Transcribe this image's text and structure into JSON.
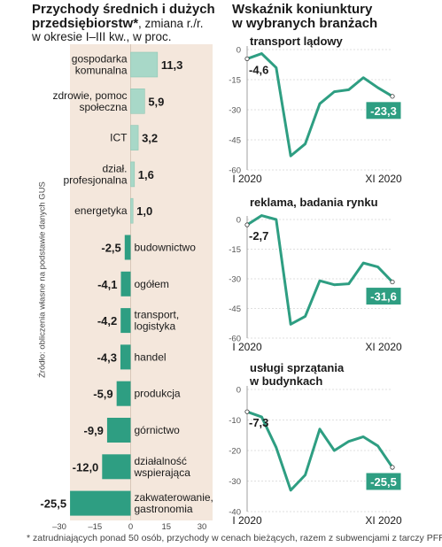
{
  "left_title": {
    "line1": "Przychody średnich i dużych",
    "line2_bold": "przedsiębiorstw*",
    "line2_rest": ", zmiana r./r.",
    "line3": "w okresie I–III kw., w proc."
  },
  "right_title": {
    "line1": "Wskaźnik koniunktury",
    "line2": "w wybranych branżach"
  },
  "source": "Źródło: obliczenia własne na podstawie danych GUS",
  "footnote": "* zatrudniających ponad 50 osób, przychody w cenach bieżących, razem z subwencjami z tarczy PFR",
  "colors": {
    "bar_fill": "#2e9e82",
    "bar_light": "#a8d8c8",
    "band": "#f4e7dc",
    "line": "#2e9e82",
    "label_box": "#2e9e82"
  },
  "chart_data": [
    {
      "type": "bar",
      "orientation": "horizontal",
      "categories": [
        "gospodarka komunalna",
        "zdrowie, pomoc społeczna",
        "ICT",
        "dział. profesjonalna",
        "energetyka",
        "budownictwo",
        "ogółem",
        "transport, logistyka",
        "handel",
        "produkcja",
        "górnictwo",
        "działalność wspierająca",
        "zakwaterowanie, gastronomia"
      ],
      "category_lines": [
        [
          "gospodarka",
          "komunalna"
        ],
        [
          "zdrowie, pomoc",
          "społeczna"
        ],
        [
          "ICT"
        ],
        [
          "dział.",
          "profesjonalna"
        ],
        [
          "energetyka"
        ],
        [
          "budownictwo"
        ],
        [
          "ogółem"
        ],
        [
          "transport,",
          "logistyka"
        ],
        [
          "handel"
        ],
        [
          "produkcja"
        ],
        [
          "górnictwo"
        ],
        [
          "działalność",
          "wspierająca"
        ],
        [
          "zakwaterowanie,",
          "gastronomia"
        ]
      ],
      "values": [
        11.3,
        5.9,
        3.2,
        1.6,
        1.0,
        -2.5,
        -4.1,
        -4.2,
        -4.3,
        -5.9,
        -9.9,
        -12.0,
        -25.5
      ],
      "value_labels": [
        "11,3",
        "5,9",
        "3,2",
        "1,6",
        "1,0",
        "-2,5",
        "-4,1",
        "-4,2",
        "-4,3",
        "-5,9",
        "-9,9",
        "-12,0",
        "-25,5"
      ],
      "xlim": [
        -30,
        30
      ],
      "xticks": [
        -30,
        -15,
        0,
        15,
        30
      ],
      "xtick_labels": [
        "–30",
        "–15",
        "0",
        "15",
        "30"
      ]
    },
    {
      "type": "line",
      "title": "transport lądowy",
      "x": [
        "I 2020",
        "II 2020",
        "III 2020",
        "IV 2020",
        "V 2020",
        "VI 2020",
        "VII 2020",
        "VIII 2020",
        "IX 2020",
        "X 2020",
        "XI 2020"
      ],
      "values": [
        -4.6,
        -2.0,
        -9.0,
        -53.0,
        -47.0,
        -27.0,
        -21.0,
        -20.0,
        -14.0,
        -19.0,
        -23.3
      ],
      "ylim": [
        -60,
        0
      ],
      "yticks": [
        0,
        -15,
        -30,
        -45,
        -60
      ],
      "ytick_labels": [
        "0",
        "-15",
        "-30",
        "-45",
        "-60"
      ],
      "x_labels": [
        "I 2020",
        "XI 2020"
      ],
      "first_label": "-4,6",
      "last_label": "-23,3"
    },
    {
      "type": "line",
      "title": "reklama, badania rynku",
      "x": [
        "I 2020",
        "II 2020",
        "III 2020",
        "IV 2020",
        "V 2020",
        "VI 2020",
        "VII 2020",
        "VIII 2020",
        "IX 2020",
        "X 2020",
        "XI 2020"
      ],
      "values": [
        -2.7,
        2.0,
        0.0,
        -53.0,
        -49.0,
        -31.0,
        -33.0,
        -32.5,
        -22.0,
        -24.0,
        -31.6
      ],
      "ylim": [
        -60,
        0
      ],
      "yticks": [
        0,
        -15,
        -30,
        -45,
        -60
      ],
      "ytick_labels": [
        "0",
        "-15",
        "-30",
        "-45",
        "-60"
      ],
      "x_labels": [
        "I 2020",
        "XI 2020"
      ],
      "first_label": "-2,7",
      "last_label": "-31,6"
    },
    {
      "type": "line",
      "title": "usługi sprzątania w budynkach",
      "title_lines": [
        "usługi sprzątania",
        "w budynkach"
      ],
      "x": [
        "I 2020",
        "II 2020",
        "III 2020",
        "IV 2020",
        "V 2020",
        "VI 2020",
        "VII 2020",
        "VIII 2020",
        "IX 2020",
        "X 2020",
        "XI 2020"
      ],
      "values": [
        -7.3,
        -9.0,
        -19.0,
        -33.0,
        -28.0,
        -13.0,
        -20.0,
        -17.0,
        -15.5,
        -18.5,
        -25.5
      ],
      "ylim": [
        -40,
        0
      ],
      "yticks": [
        0,
        -10,
        -20,
        -30,
        -40
      ],
      "ytick_labels": [
        "0",
        "-10",
        "-20",
        "-30",
        "-40"
      ],
      "x_labels": [
        "I 2020",
        "XI 2020"
      ],
      "first_label": "-7,3",
      "last_label": "-25,5"
    }
  ]
}
